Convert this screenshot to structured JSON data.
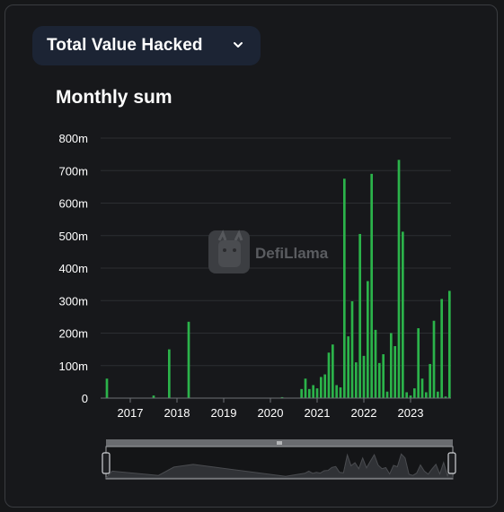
{
  "selector": {
    "label": "Total Value Hacked",
    "icon": "chevron-down-icon"
  },
  "watermark": {
    "text": "DefiLlama",
    "icon": "llama-logo-icon"
  },
  "chart_data": {
    "type": "bar",
    "title": "Monthly sum",
    "xlabel": "",
    "ylabel": "",
    "ylim": [
      0,
      800
    ],
    "y_unit": "m",
    "y_ticks": [
      "0",
      "100m",
      "200m",
      "300m",
      "400m",
      "500m",
      "600m",
      "700m",
      "800m"
    ],
    "x_ticks": [
      "2017",
      "2018",
      "2019",
      "2020",
      "2021",
      "2022",
      "2023"
    ],
    "bar_color": "#2bb34a",
    "grid": true,
    "legend": "none",
    "categories": [
      "2016-07",
      "2017-07",
      "2017-11",
      "2018-04",
      "2020-04",
      "2020-09",
      "2020-10",
      "2020-11",
      "2020-12",
      "2021-01",
      "2021-02",
      "2021-03",
      "2021-04",
      "2021-05",
      "2021-06",
      "2021-07",
      "2021-08",
      "2021-09",
      "2021-10",
      "2021-11",
      "2021-12",
      "2022-01",
      "2022-02",
      "2022-03",
      "2022-04",
      "2022-05",
      "2022-06",
      "2022-07",
      "2022-08",
      "2022-09",
      "2022-10",
      "2022-11",
      "2022-12",
      "2023-01",
      "2023-02",
      "2023-03",
      "2023-04",
      "2023-05",
      "2023-06",
      "2023-07",
      "2023-08",
      "2023-09",
      "2023-10",
      "2023-11"
    ],
    "values": [
      60,
      8,
      150,
      235,
      3,
      28,
      60,
      28,
      40,
      30,
      65,
      73,
      140,
      165,
      40,
      33,
      675,
      190,
      298,
      110,
      505,
      130,
      360,
      690,
      210,
      108,
      135,
      20,
      200,
      160,
      733,
      512,
      18,
      8,
      30,
      215,
      60,
      18,
      105,
      238,
      20,
      305,
      5,
      330
    ]
  }
}
